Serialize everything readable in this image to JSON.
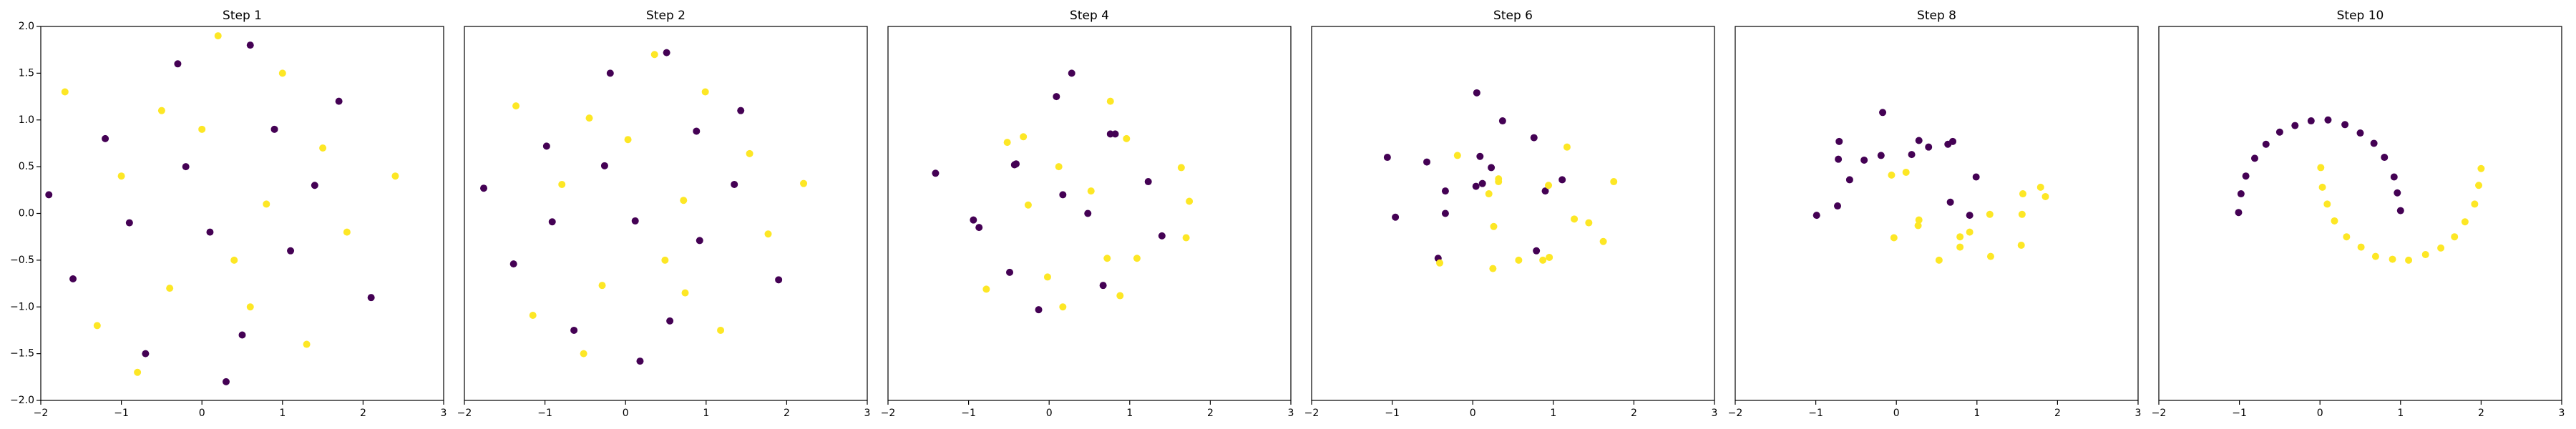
{
  "chart_data": [
    {
      "type": "scatter",
      "title": "Step 1",
      "xlim": [
        -2,
        3
      ],
      "ylim": [
        -2,
        2
      ],
      "xticks": [
        {
          "value": -2,
          "label": "−2"
        },
        {
          "value": -1,
          "label": "−1"
        },
        0,
        1,
        2,
        3
      ],
      "yticks": [
        {
          "value": -2,
          "label": "−2.0"
        },
        {
          "value": -1.5,
          "label": "−1.5"
        },
        {
          "value": -1,
          "label": "−1.0"
        },
        {
          "value": -0.5,
          "label": "−0.5"
        },
        {
          "value": 0,
          "label": "0.0"
        },
        {
          "value": 0.5,
          "label": "0.5"
        },
        {
          "value": 1,
          "label": "1.0"
        },
        {
          "value": 1.5,
          "label": "1.5"
        },
        {
          "value": 2,
          "label": "2.0"
        }
      ],
      "series": [
        {
          "color": "#440154",
          "x": [
            -1.2,
            0.5,
            1.4,
            -0.3,
            0.9,
            -1.6,
            0.1,
            2.1,
            -0.7,
            0.6,
            -1.9,
            1.1,
            -0.2,
            0.3,
            1.7,
            -0.9
          ],
          "values": [
            0.8,
            -1.3,
            0.3,
            1.6,
            0.9,
            -0.7,
            -0.2,
            -0.9,
            -1.5,
            1.8,
            0.2,
            -0.4,
            0.5,
            -1.8,
            1.2,
            -0.1
          ]
        },
        {
          "color": "#fde725",
          "x": [
            0.8,
            -0.5,
            1.3,
            -1.3,
            0.0,
            2.4,
            -0.4,
            1.0,
            -1.0,
            0.4,
            1.8,
            -1.7,
            0.2,
            1.5,
            -0.8,
            0.6
          ],
          "values": [
            0.1,
            1.1,
            -1.4,
            -1.2,
            0.9,
            0.4,
            -0.8,
            1.5,
            0.4,
            -0.5,
            -0.2,
            1.3,
            1.9,
            0.7,
            -1.7,
            -1.0
          ]
        }
      ]
    },
    {
      "type": "scatter",
      "title": "Step 2",
      "xlim": [
        -2,
        3
      ],
      "ylim": [
        -2,
        2
      ],
      "xticks": [
        {
          "value": -2,
          "label": "−2"
        },
        {
          "value": -1,
          "label": "−1"
        },
        0,
        1,
        2,
        3
      ],
      "series": [
        {
          "color": "#440154",
          "x": [
            -0.98,
            0.55,
            1.35,
            -0.19,
            0.88,
            -1.39,
            0.12,
            1.9,
            -0.64,
            0.51,
            -1.76,
            0.92,
            -0.26,
            0.18,
            1.43,
            -0.91
          ],
          "values": [
            0.72,
            -1.15,
            0.31,
            1.5,
            0.88,
            -0.54,
            -0.08,
            -0.71,
            -1.25,
            1.72,
            0.27,
            -0.29,
            0.51,
            -1.58,
            1.1,
            -0.09
          ]
        },
        {
          "color": "#fde725",
          "x": [
            0.72,
            -0.45,
            1.18,
            -1.15,
            0.03,
            2.21,
            -0.29,
            0.99,
            -0.79,
            0.49,
            1.77,
            -1.36,
            0.36,
            1.54,
            -0.52,
            0.74
          ],
          "values": [
            0.14,
            1.02,
            -1.25,
            -1.09,
            0.79,
            0.32,
            -0.77,
            1.3,
            0.31,
            -0.5,
            -0.22,
            1.15,
            1.7,
            0.64,
            -1.5,
            -0.85
          ]
        }
      ]
    },
    {
      "type": "scatter",
      "title": "Step 4",
      "xlim": [
        -2,
        3
      ],
      "ylim": [
        -2,
        2
      ],
      "xticks": [
        {
          "value": -2,
          "label": "−2"
        },
        {
          "value": -1,
          "label": "−1"
        },
        0,
        1,
        2,
        3
      ],
      "series": [
        {
          "color": "#440154",
          "x": [
            -0.43,
            0.67,
            1.23,
            0.09,
            0.82,
            -0.87,
            0.17,
            1.4,
            -0.49,
            0.28,
            -1.41,
            0.48,
            -0.41,
            -0.13,
            0.76,
            -0.94
          ],
          "values": [
            0.52,
            -0.77,
            0.34,
            1.25,
            0.85,
            -0.15,
            0.2,
            -0.24,
            -0.63,
            1.5,
            0.43,
            0.0,
            0.53,
            -1.03,
            0.85,
            -0.07
          ]
        },
        {
          "color": "#fde725",
          "x": [
            0.52,
            -0.32,
            0.88,
            -0.78,
            0.12,
            1.74,
            -0.02,
            0.96,
            -0.26,
            0.72,
            1.7,
            -0.52,
            0.76,
            1.64,
            0.17,
            1.09
          ],
          "values": [
            0.24,
            0.82,
            -0.88,
            -0.81,
            0.5,
            0.13,
            -0.68,
            0.8,
            0.09,
            -0.48,
            -0.26,
            0.76,
            1.2,
            0.49,
            -1.0,
            -0.48
          ]
        }
      ]
    },
    {
      "type": "scatter",
      "title": "Step 6",
      "xlim": [
        -2,
        3
      ],
      "ylim": [
        -2,
        2
      ],
      "xticks": [
        {
          "value": -2,
          "label": "−2"
        },
        {
          "value": -1,
          "label": "−1"
        },
        0,
        1,
        2,
        3
      ],
      "series": [
        {
          "color": "#440154",
          "x": [
            0.12,
            0.79,
            1.11,
            0.37,
            0.76,
            -0.34,
            0.23,
            0.9,
            -0.34,
            0.05,
            -1.06,
            0.04,
            -0.57,
            -0.43,
            0.09,
            -0.96
          ],
          "values": [
            0.32,
            -0.4,
            0.36,
            0.99,
            0.81,
            0.24,
            0.49,
            0.24,
            0.0,
            1.29,
            0.6,
            0.29,
            0.55,
            -0.48,
            0.61,
            -0.04
          ]
        },
        {
          "color": "#fde725",
          "x": [
            0.32,
            -0.19,
            0.57,
            -0.41,
            0.2,
            1.26,
            0.25,
            0.94,
            0.26,
            0.95,
            1.62,
            0.32,
            1.17,
            1.75,
            0.87,
            1.44
          ],
          "values": [
            0.34,
            0.62,
            -0.5,
            -0.53,
            0.21,
            -0.06,
            -0.59,
            0.3,
            -0.14,
            -0.47,
            -0.3,
            0.37,
            0.71,
            0.34,
            -0.5,
            -0.1
          ]
        }
      ]
    },
    {
      "type": "scatter",
      "title": "Step 8",
      "xlim": [
        -2,
        3
      ],
      "ylim": [
        -2,
        2
      ],
      "xticks": [
        {
          "value": -2,
          "label": "−2"
        },
        {
          "value": -1,
          "label": "−1"
        },
        0,
        1,
        2,
        3
      ],
      "series": [
        {
          "color": "#440154",
          "x": [
            0.67,
            0.91,
            0.99,
            0.64,
            0.7,
            0.19,
            0.28,
            0.4,
            -0.19,
            -0.17,
            -0.71,
            -0.4,
            -0.72,
            -0.73,
            -0.58,
            -0.99
          ],
          "values": [
            0.12,
            -0.02,
            0.39,
            0.74,
            0.77,
            0.63,
            0.78,
            0.71,
            0.62,
            1.08,
            0.77,
            0.57,
            0.58,
            0.08,
            0.36,
            -0.02
          ]
        },
        {
          "color": "#fde725",
          "x": [
            0.12,
            -0.06,
            0.27,
            -0.03,
            0.28,
            0.79,
            0.53,
            0.91,
            0.79,
            1.17,
            1.55,
            1.16,
            1.57,
            1.85,
            1.56,
            1.79
          ],
          "values": [
            0.44,
            0.41,
            -0.13,
            -0.26,
            -0.07,
            -0.25,
            -0.5,
            -0.2,
            -0.36,
            -0.46,
            -0.34,
            -0.01,
            0.21,
            0.18,
            -0.01,
            0.28
          ]
        }
      ]
    },
    {
      "type": "scatter",
      "title": "Step 10",
      "xlim": [
        -2,
        3
      ],
      "ylim": [
        -2,
        2
      ],
      "xticks": [
        {
          "value": -2,
          "label": "−2"
        },
        {
          "value": -1,
          "label": "−1"
        },
        0,
        1,
        2,
        3
      ],
      "series": [
        {
          "color": "#440154",
          "x": [
            1.0,
            0.96,
            0.92,
            0.8,
            0.67,
            0.5,
            0.31,
            0.1,
            -0.11,
            -0.31,
            -0.5,
            -0.67,
            -0.81,
            -0.92,
            -0.98,
            -1.01
          ],
          "values": [
            0.03,
            0.22,
            0.39,
            0.6,
            0.75,
            0.86,
            0.95,
            1.0,
            0.99,
            0.94,
            0.87,
            0.74,
            0.59,
            0.4,
            0.21,
            0.01
          ]
        },
        {
          "color": "#fde725",
          "x": [
            0.01,
            0.03,
            0.09,
            0.18,
            0.33,
            0.51,
            0.69,
            0.9,
            1.1,
            1.31,
            1.5,
            1.67,
            1.8,
            1.92,
            1.97,
            2.0
          ],
          "values": [
            0.49,
            0.28,
            0.1,
            -0.08,
            -0.25,
            -0.36,
            -0.46,
            -0.49,
            -0.5,
            -0.44,
            -0.37,
            -0.25,
            -0.09,
            0.1,
            0.3,
            0.48
          ]
        }
      ]
    }
  ]
}
